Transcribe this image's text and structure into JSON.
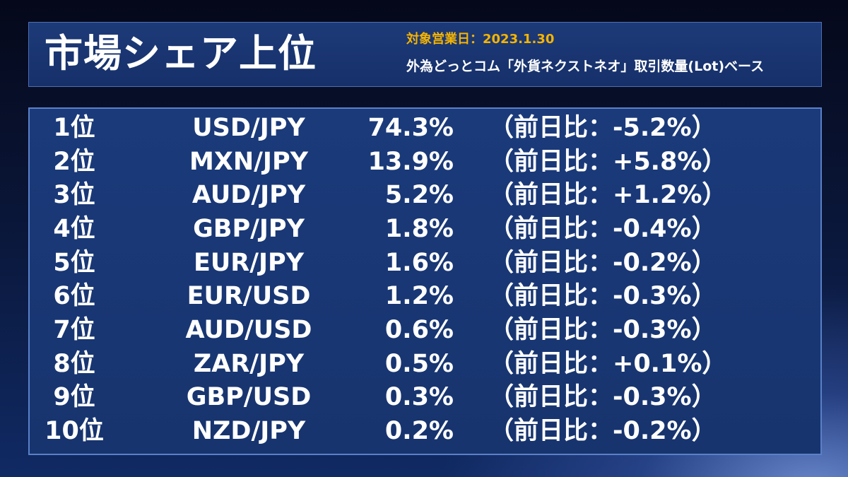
{
  "header": {
    "title": "市場シェア上位",
    "date_line": "対象営業日：2023.1.30",
    "basis_line": "外為どっとコム「外貨ネクストネオ」取引数量(Lot)ベース"
  },
  "rows": [
    {
      "rank": "1位",
      "pair": "USD/JPY",
      "share": "74.3%",
      "change": "（前日比：-5.2%）"
    },
    {
      "rank": "2位",
      "pair": "MXN/JPY",
      "share": "13.9%",
      "change": "（前日比：+5.8%）"
    },
    {
      "rank": "3位",
      "pair": "AUD/JPY",
      "share": "5.2%",
      "change": "（前日比：+1.2%）"
    },
    {
      "rank": "4位",
      "pair": "GBP/JPY",
      "share": "1.8%",
      "change": "（前日比：-0.4%）"
    },
    {
      "rank": "5位",
      "pair": "EUR/JPY",
      "share": "1.6%",
      "change": "（前日比：-0.2%）"
    },
    {
      "rank": "6位",
      "pair": "EUR/USD",
      "share": "1.2%",
      "change": "（前日比：-0.3%）"
    },
    {
      "rank": "7位",
      "pair": "AUD/USD",
      "share": "0.6%",
      "change": "（前日比：-0.3%）"
    },
    {
      "rank": "8位",
      "pair": "ZAR/JPY",
      "share": "0.5%",
      "change": "（前日比：+0.1%）"
    },
    {
      "rank": "9位",
      "pair": "GBP/USD",
      "share": "0.3%",
      "change": "（前日比：-0.3%）"
    },
    {
      "rank": "10位",
      "pair": "NZD/JPY",
      "share": "0.2%",
      "change": "（前日比：-0.2%）"
    }
  ],
  "colors": {
    "accent_date": "#f5b400",
    "text": "#ffffff",
    "panel": "#1b3a7a",
    "border": "#5a80c8"
  }
}
